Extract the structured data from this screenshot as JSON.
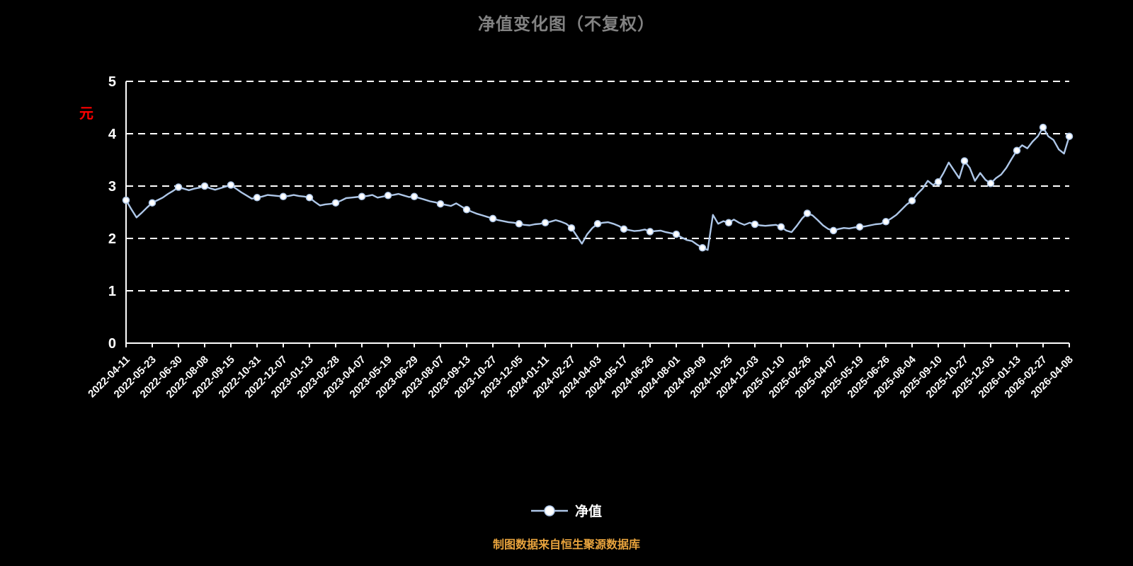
{
  "title": "净值变化图（不复权）",
  "unit_label": "元",
  "legend": {
    "label": "净值"
  },
  "footer": "制图数据来自恒生聚源数据库",
  "colors": {
    "background": "#000000",
    "title": "#828282",
    "footer": "#e8a33d",
    "unit": "#ff0000",
    "line": "#aec7e8",
    "marker_fill": "#ffffff",
    "grid": "#ffffff",
    "axis": "#ffffff",
    "axis_text": "#ffffff"
  },
  "chart_data": {
    "type": "line",
    "title": "净值变化图（不复权）",
    "series_name": "净值",
    "ylabel_unit": "元",
    "ylim": [
      0,
      5
    ],
    "yticks": [
      0,
      1,
      2,
      3,
      4,
      5
    ],
    "grid": "horizontal-dashed",
    "legend_position": "bottom-center",
    "marker_every": 5,
    "x_tick_labels": [
      "2022-04-11",
      "2022-05-23",
      "2022-06-30",
      "2022-08-08",
      "2022-09-15",
      "2022-10-31",
      "2022-12-07",
      "2023-01-13",
      "2023-02-28",
      "2023-04-07",
      "2023-05-19",
      "2023-06-29",
      "2023-08-07",
      "2023-09-13",
      "2023-10-27",
      "2023-12-05",
      "2024-01-11",
      "2024-02-27",
      "2024-04-03",
      "2024-05-17",
      "2024-06-26",
      "2024-08-01",
      "2024-09-09",
      "2024-10-25",
      "2024-12-03",
      "2025-01-10",
      "2025-02-26",
      "2025-04-07",
      "2025-05-19",
      "2025-06-26",
      "2025-08-04",
      "2025-09-10",
      "2025-10-27",
      "2025-12-03",
      "2026-01-13",
      "2026-02-27",
      "2026-04-08"
    ],
    "values": [
      2.73,
      2.56,
      2.4,
      2.49,
      2.59,
      2.68,
      2.73,
      2.78,
      2.85,
      2.91,
      2.98,
      2.95,
      2.92,
      2.95,
      2.97,
      3.0,
      2.96,
      2.93,
      2.96,
      2.99,
      3.02,
      2.95,
      2.88,
      2.82,
      2.76,
      2.78,
      2.8,
      2.83,
      2.82,
      2.81,
      2.8,
      2.81,
      2.83,
      2.81,
      2.8,
      2.78,
      2.7,
      2.63,
      2.65,
      2.66,
      2.68,
      2.72,
      2.77,
      2.78,
      2.79,
      2.8,
      2.81,
      2.83,
      2.78,
      2.8,
      2.82,
      2.83,
      2.85,
      2.82,
      2.79,
      2.8,
      2.77,
      2.74,
      2.71,
      2.69,
      2.66,
      2.64,
      2.62,
      2.67,
      2.61,
      2.55,
      2.51,
      2.47,
      2.44,
      2.41,
      2.38,
      2.35,
      2.33,
      2.31,
      2.3,
      2.28,
      2.26,
      2.25,
      2.27,
      2.28,
      2.3,
      2.32,
      2.35,
      2.32,
      2.28,
      2.2,
      2.05,
      1.9,
      2.08,
      2.2,
      2.28,
      2.3,
      2.31,
      2.28,
      2.24,
      2.18,
      2.16,
      2.14,
      2.15,
      2.17,
      2.13,
      2.14,
      2.15,
      2.12,
      2.1,
      2.08,
      2.02,
      1.97,
      1.95,
      1.88,
      1.82,
      1.78,
      2.45,
      2.28,
      2.33,
      2.3,
      2.36,
      2.3,
      2.26,
      2.3,
      2.27,
      2.25,
      2.24,
      2.25,
      2.26,
      2.22,
      2.15,
      2.12,
      2.24,
      2.38,
      2.48,
      2.44,
      2.35,
      2.25,
      2.18,
      2.15,
      2.18,
      2.2,
      2.19,
      2.21,
      2.22,
      2.23,
      2.25,
      2.27,
      2.28,
      2.32,
      2.38,
      2.45,
      2.55,
      2.65,
      2.72,
      2.85,
      2.95,
      3.1,
      3.02,
      3.08,
      3.25,
      3.45,
      3.3,
      3.15,
      3.48,
      3.35,
      3.1,
      3.25,
      3.12,
      3.05,
      3.15,
      3.22,
      3.35,
      3.52,
      3.68,
      3.78,
      3.72,
      3.85,
      3.95,
      4.12,
      3.95,
      3.88,
      3.7,
      3.62,
      3.95
    ]
  }
}
